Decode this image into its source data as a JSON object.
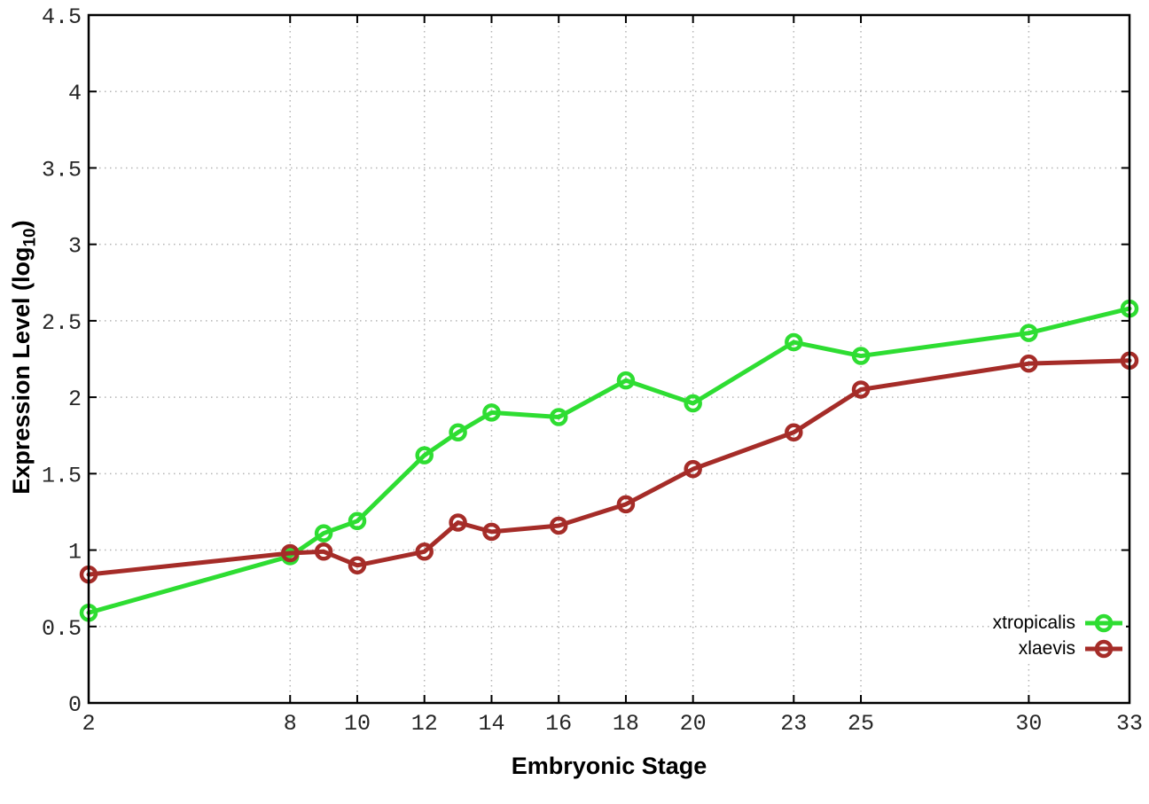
{
  "colors": {
    "background": "#ffffff",
    "axis": "#000000",
    "grid": "#b4b4b4",
    "tick_label": "#262626",
    "xtropicalis": "#2edd32",
    "xlaevis": "#a52c28"
  },
  "chart_data": {
    "type": "line",
    "title": "",
    "xlabel": "Embryonic Stage",
    "ylabel": {
      "text": "Expression Level (log",
      "subscript": "10",
      "suffix": ")"
    },
    "x": [
      2,
      8,
      9,
      10,
      12,
      13,
      14,
      16,
      18,
      20,
      23,
      25,
      30,
      33
    ],
    "series": [
      {
        "name": "xtropicalis",
        "color": "#2edd32",
        "marker": "open-circle",
        "values": [
          0.59,
          0.96,
          1.11,
          1.19,
          1.62,
          1.77,
          1.9,
          1.87,
          2.11,
          1.96,
          2.36,
          2.27,
          2.42,
          2.58
        ]
      },
      {
        "name": "xlaevis",
        "color": "#a52c28",
        "marker": "open-circle",
        "values": [
          0.84,
          0.98,
          0.99,
          0.9,
          0.99,
          1.18,
          1.12,
          1.16,
          1.3,
          1.53,
          1.77,
          2.05,
          2.22,
          2.24
        ]
      }
    ],
    "xlim": [
      2,
      33
    ],
    "ylim": [
      0,
      4.5
    ],
    "xticks": {
      "values": [
        2,
        8,
        10,
        12,
        14,
        16,
        18,
        20,
        23,
        25,
        30,
        33
      ],
      "labels": [
        "2",
        "8",
        "10",
        "12",
        "14",
        "16",
        "18",
        "20",
        "23",
        "25",
        "30",
        "33"
      ]
    },
    "yticks": {
      "values": [
        0,
        0.5,
        1,
        1.5,
        2,
        2.5,
        3,
        3.5,
        4,
        4.5
      ],
      "labels": [
        "0",
        "0.5",
        "1",
        "1.5",
        "2",
        "2.5",
        "3",
        "3.5",
        "4",
        "4.5"
      ]
    },
    "grid": true,
    "legend_position": "inside bottom-right"
  }
}
